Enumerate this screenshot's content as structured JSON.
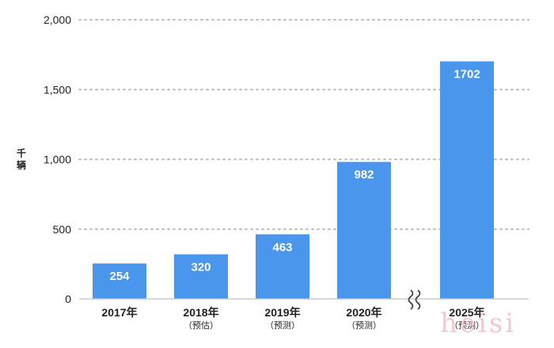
{
  "chart_data": {
    "type": "bar",
    "ylabel": "千辆",
    "ylim": [
      0,
      2000
    ],
    "yticks": [
      "0",
      "500",
      "1,000",
      "1,500",
      "2,000"
    ],
    "ytick_values": [
      0,
      500,
      1000,
      1500,
      2000
    ],
    "grid": "dotted horizontal",
    "categories": [
      "2017年",
      "2018年",
      "2019年",
      "2020年",
      "2025年"
    ],
    "category_notes": [
      "",
      "（预估）",
      "（预测）",
      "（预测）",
      "（预测）"
    ],
    "values": [
      254,
      320,
      463,
      982,
      1702
    ],
    "value_labels": [
      "254",
      "320",
      "463",
      "982",
      "1702"
    ],
    "axis_break_before": "2025年",
    "bar_color": "#4a96ec",
    "grid_color": "#bbbbbb"
  },
  "watermark": "heisi"
}
